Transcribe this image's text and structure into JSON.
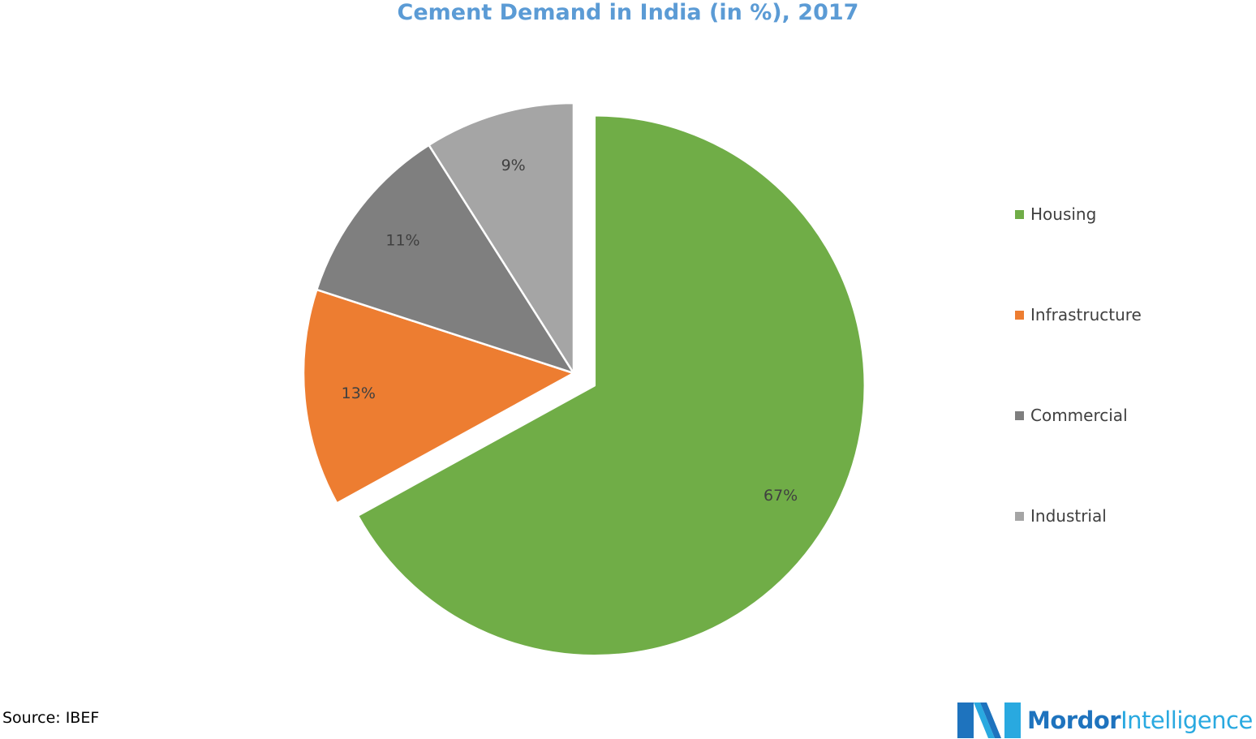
{
  "chart_data": {
    "type": "pie",
    "title": "Cement Demand in India (in %), 2017",
    "categories": [
      "Housing",
      "Infrastructure",
      "Commercial",
      "Industrial"
    ],
    "values": [
      67,
      13,
      11,
      9
    ],
    "data_labels": [
      "67%",
      "13%",
      "11%",
      "9%"
    ],
    "colors": [
      "#70ad47",
      "#ed7d31",
      "#7f7f7f",
      "#a5a5a5"
    ],
    "exploded_slice": "Housing",
    "legend_position": "right"
  },
  "source": {
    "text": "Source: IBEF"
  },
  "brand": {
    "name_part1": "Mordor",
    "name_part2": "Intelligence",
    "color_dark": "#1e73be",
    "color_light": "#29a9e0",
    "logo_icon": "mordor-intelligence-logo-icon"
  }
}
